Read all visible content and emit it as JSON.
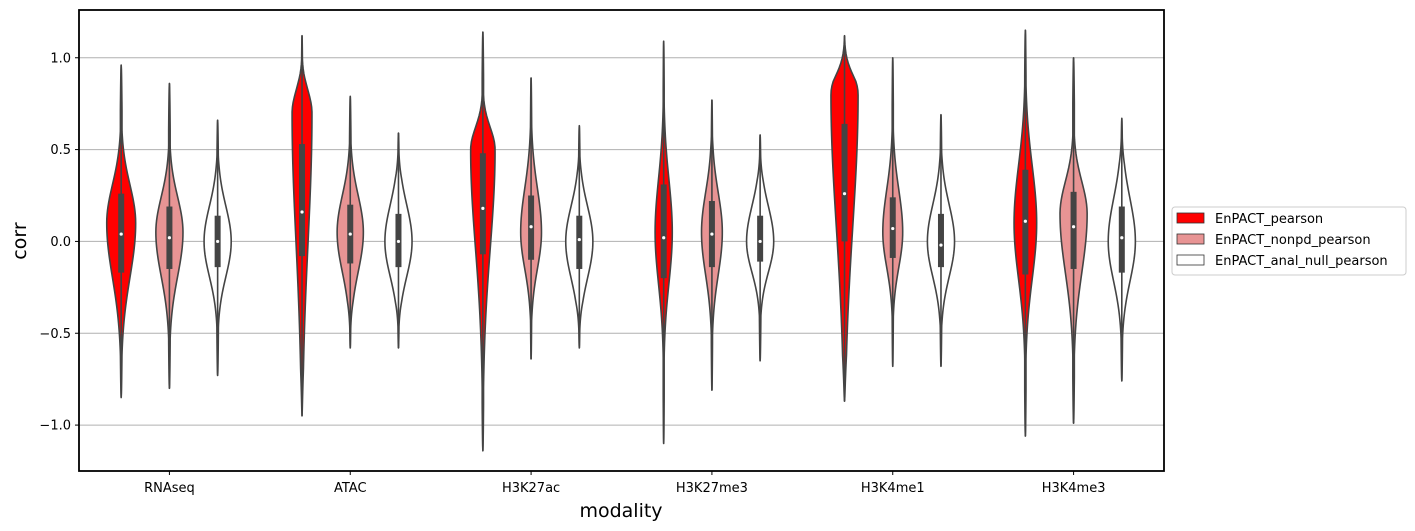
{
  "chart_data": {
    "type": "violin",
    "title": "",
    "xlabel": "modality",
    "ylabel": "corr",
    "ylim": [
      -1.25,
      1.26
    ],
    "yticks": [
      -1.0,
      -0.5,
      0.0,
      0.5,
      1.0
    ],
    "ytick_labels": [
      "−1.0",
      "−0.5",
      "0.0",
      "0.5",
      "1.0"
    ],
    "grid": "horizontal",
    "legend_position": "right",
    "categories": [
      "RNAseq",
      "ATAC",
      "H3K27ac",
      "H3K27me3",
      "H3K4me1",
      "H3K4me3"
    ],
    "series": [
      {
        "name": "EnPACT_pearson",
        "color": "#ff0000",
        "violins": [
          {
            "min": -0.85,
            "max": 0.96,
            "q1": -0.17,
            "median": 0.04,
            "q3": 0.26,
            "mode": 0.1,
            "maxwidth": 0.32
          },
          {
            "min": -0.95,
            "max": 1.12,
            "q1": -0.08,
            "median": 0.16,
            "q3": 0.53,
            "mode": 0.7,
            "maxwidth": 0.22
          },
          {
            "min": -1.14,
            "max": 1.14,
            "q1": -0.07,
            "median": 0.18,
            "q3": 0.48,
            "mode": 0.5,
            "maxwidth": 0.27
          },
          {
            "min": -1.1,
            "max": 1.09,
            "q1": -0.2,
            "median": 0.02,
            "q3": 0.31,
            "mode": 0.05,
            "maxwidth": 0.19
          },
          {
            "min": -0.87,
            "max": 1.12,
            "q1": 0.0,
            "median": 0.26,
            "q3": 0.64,
            "mode": 0.8,
            "maxwidth": 0.3
          },
          {
            "min": -1.06,
            "max": 1.15,
            "q1": -0.18,
            "median": 0.11,
            "q3": 0.39,
            "mode": 0.1,
            "maxwidth": 0.25
          }
        ]
      },
      {
        "name": "EnPACT_nonpd_pearson",
        "color": "#e89494",
        "violins": [
          {
            "min": -0.8,
            "max": 0.86,
            "q1": -0.15,
            "median": 0.02,
            "q3": 0.19,
            "mode": 0.05,
            "maxwidth": 0.3
          },
          {
            "min": -0.58,
            "max": 0.79,
            "q1": -0.12,
            "median": 0.04,
            "q3": 0.2,
            "mode": 0.05,
            "maxwidth": 0.29
          },
          {
            "min": -0.64,
            "max": 0.89,
            "q1": -0.1,
            "median": 0.08,
            "q3": 0.25,
            "mode": 0.05,
            "maxwidth": 0.23
          },
          {
            "min": -0.81,
            "max": 0.77,
            "q1": -0.14,
            "median": 0.04,
            "q3": 0.22,
            "mode": 0.05,
            "maxwidth": 0.23
          },
          {
            "min": -0.68,
            "max": 1.0,
            "q1": -0.09,
            "median": 0.07,
            "q3": 0.24,
            "mode": 0.05,
            "maxwidth": 0.22
          },
          {
            "min": -0.99,
            "max": 1.0,
            "q1": -0.15,
            "median": 0.08,
            "q3": 0.27,
            "mode": 0.15,
            "maxwidth": 0.3
          }
        ]
      },
      {
        "name": "EnPACT_anal_null_pearson",
        "color": "#ffffff",
        "violins": [
          {
            "min": -0.73,
            "max": 0.66,
            "q1": -0.14,
            "median": 0.0,
            "q3": 0.14,
            "mode": 0.0,
            "maxwidth": 0.3
          },
          {
            "min": -0.58,
            "max": 0.59,
            "q1": -0.14,
            "median": 0.0,
            "q3": 0.15,
            "mode": 0.0,
            "maxwidth": 0.3
          },
          {
            "min": -0.58,
            "max": 0.63,
            "q1": -0.15,
            "median": 0.01,
            "q3": 0.14,
            "mode": 0.0,
            "maxwidth": 0.3
          },
          {
            "min": -0.65,
            "max": 0.58,
            "q1": -0.11,
            "median": 0.0,
            "q3": 0.14,
            "mode": 0.0,
            "maxwidth": 0.3
          },
          {
            "min": -0.68,
            "max": 0.69,
            "q1": -0.14,
            "median": -0.02,
            "q3": 0.15,
            "mode": 0.0,
            "maxwidth": 0.3
          },
          {
            "min": -0.76,
            "max": 0.67,
            "q1": -0.17,
            "median": 0.02,
            "q3": 0.19,
            "mode": 0.0,
            "maxwidth": 0.3
          }
        ]
      }
    ]
  }
}
